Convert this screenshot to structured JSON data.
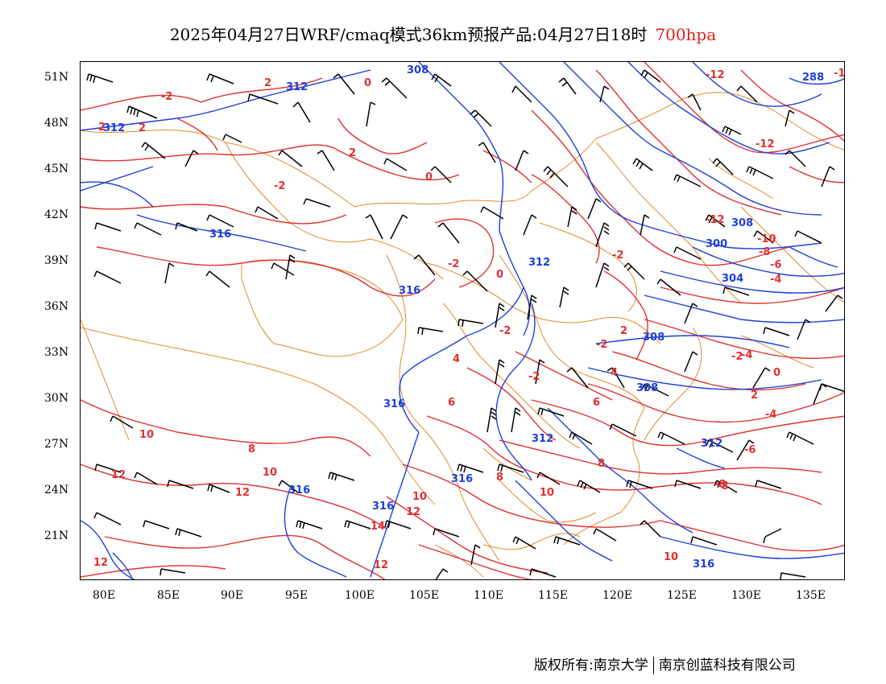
{
  "title": {
    "text": "2025年04月27日WRF/cmaq模式36km预报产品:04月27日18时",
    "level": "700hpa",
    "level_color": "#e02020"
  },
  "colors": {
    "height_contour": "#1e3fd8",
    "temperature_contour": "#e03030",
    "boundaries": "#e08a2a",
    "wind_barb": "#000000"
  },
  "lat_labels": [
    "51N",
    "48N",
    "45N",
    "42N",
    "39N",
    "36N",
    "33N",
    "30N",
    "27N",
    "24N",
    "21N"
  ],
  "lon_labels": [
    "80E",
    "85E",
    "90E",
    "95E",
    "100E",
    "105E",
    "110E",
    "115E",
    "120E",
    "125E",
    "130E",
    "135E"
  ],
  "height_labels": [
    "312",
    "312",
    "308",
    "288",
    "316",
    "312",
    "316",
    "300",
    "304",
    "308",
    "308",
    "308",
    "316",
    "312",
    "312",
    "316",
    "316",
    "316",
    "316"
  ],
  "temp_labels": [
    "2",
    "0",
    "-2",
    "-12",
    "-1",
    "2",
    "2",
    "0",
    "-2",
    "-12",
    "-2",
    "-2",
    "0",
    "-2",
    "-2",
    "-2",
    "2",
    "-12",
    "-10",
    "-8",
    "-6",
    "-4",
    "2",
    "4",
    "4",
    "-4",
    "-2",
    "0",
    "6",
    "2",
    "-6",
    "-4",
    "10",
    "8",
    "6",
    "-8",
    "12",
    "10",
    "12",
    "10",
    "12",
    "14",
    "12",
    "10",
    "12",
    "8",
    "10",
    "-8",
    "8"
  ],
  "copyright": {
    "left": "版权所有:南京大学",
    "right": "南京创蓝科技有限公司"
  }
}
